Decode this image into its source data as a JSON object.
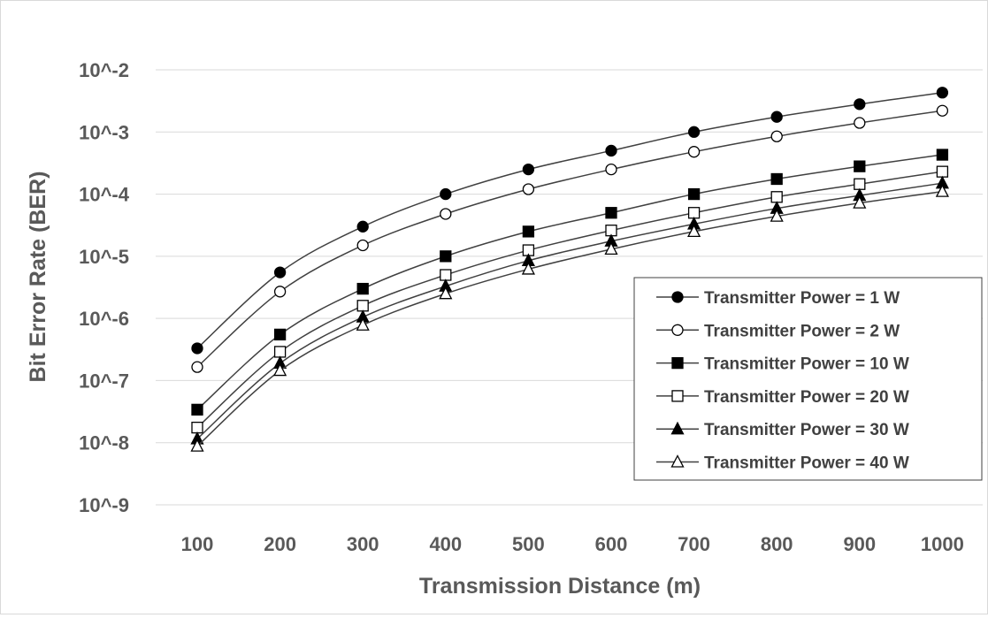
{
  "chart_data": {
    "type": "line",
    "title": "",
    "xlabel": "Transmission Distance (m)",
    "ylabel": "Bit Error Rate (BER)",
    "y_scale": "log",
    "ylim": [
      1e-09,
      0.01
    ],
    "grid": true,
    "legend_position": "right",
    "categories": [
      "100",
      "200",
      "300",
      "400",
      "500",
      "600",
      "700",
      "800",
      "900",
      "1000"
    ],
    "x": [
      100,
      200,
      300,
      400,
      500,
      600,
      700,
      800,
      900,
      1000
    ],
    "y_tick_labels": [
      "10^-2",
      "10^-3",
      "10^-4",
      "10^-5",
      "10^-6",
      "10^-7",
      "10^-8",
      "10^-9"
    ],
    "y_tick_values": [
      0.01,
      0.001,
      0.0001,
      1e-05,
      1e-06,
      1e-07,
      1e-08,
      1e-09
    ],
    "series": [
      {
        "name": "Transmitter Power = 1 W",
        "marker": "circle-filled",
        "values": [
          3.3e-07,
          5.5e-06,
          3e-05,
          0.0001,
          0.00025,
          0.0005,
          0.001,
          0.00175,
          0.0028,
          0.0043
        ]
      },
      {
        "name": "Transmitter Power = 2 W",
        "marker": "circle-open",
        "values": [
          1.65e-07,
          2.7e-06,
          1.5e-05,
          4.8e-05,
          0.00012,
          0.00025,
          0.00048,
          0.00085,
          0.0014,
          0.0022
        ]
      },
      {
        "name": "Transmitter Power = 10 W",
        "marker": "square-filled",
        "values": [
          3.4e-08,
          5.5e-07,
          3e-06,
          1e-05,
          2.5e-05,
          5e-05,
          0.0001,
          0.000175,
          0.00028,
          0.00043
        ]
      },
      {
        "name": "Transmitter Power = 20 W",
        "marker": "square-open",
        "values": [
          1.75e-08,
          2.9e-07,
          1.6e-06,
          5e-06,
          1.25e-05,
          2.6e-05,
          5e-05,
          9e-05,
          0.000145,
          0.00023
        ]
      },
      {
        "name": "Transmitter Power = 30 W",
        "marker": "triangle-filled",
        "values": [
          1.15e-08,
          1.9e-07,
          1.05e-06,
          3.3e-06,
          8.5e-06,
          1.75e-05,
          3.3e-05,
          5.9e-05,
          9.5e-05,
          0.00015
        ]
      },
      {
        "name": "Transmitter Power = 40 W",
        "marker": "triangle-open",
        "values": [
          8.8e-09,
          1.45e-07,
          7.8e-07,
          2.5e-06,
          6.2e-06,
          1.3e-05,
          2.5e-05,
          4.4e-05,
          7.2e-05,
          0.00011
        ]
      }
    ],
    "colors": {
      "line": "#404040",
      "marker": "#000000",
      "axis_text": "#595959",
      "grid": "#d9d9d9"
    }
  }
}
